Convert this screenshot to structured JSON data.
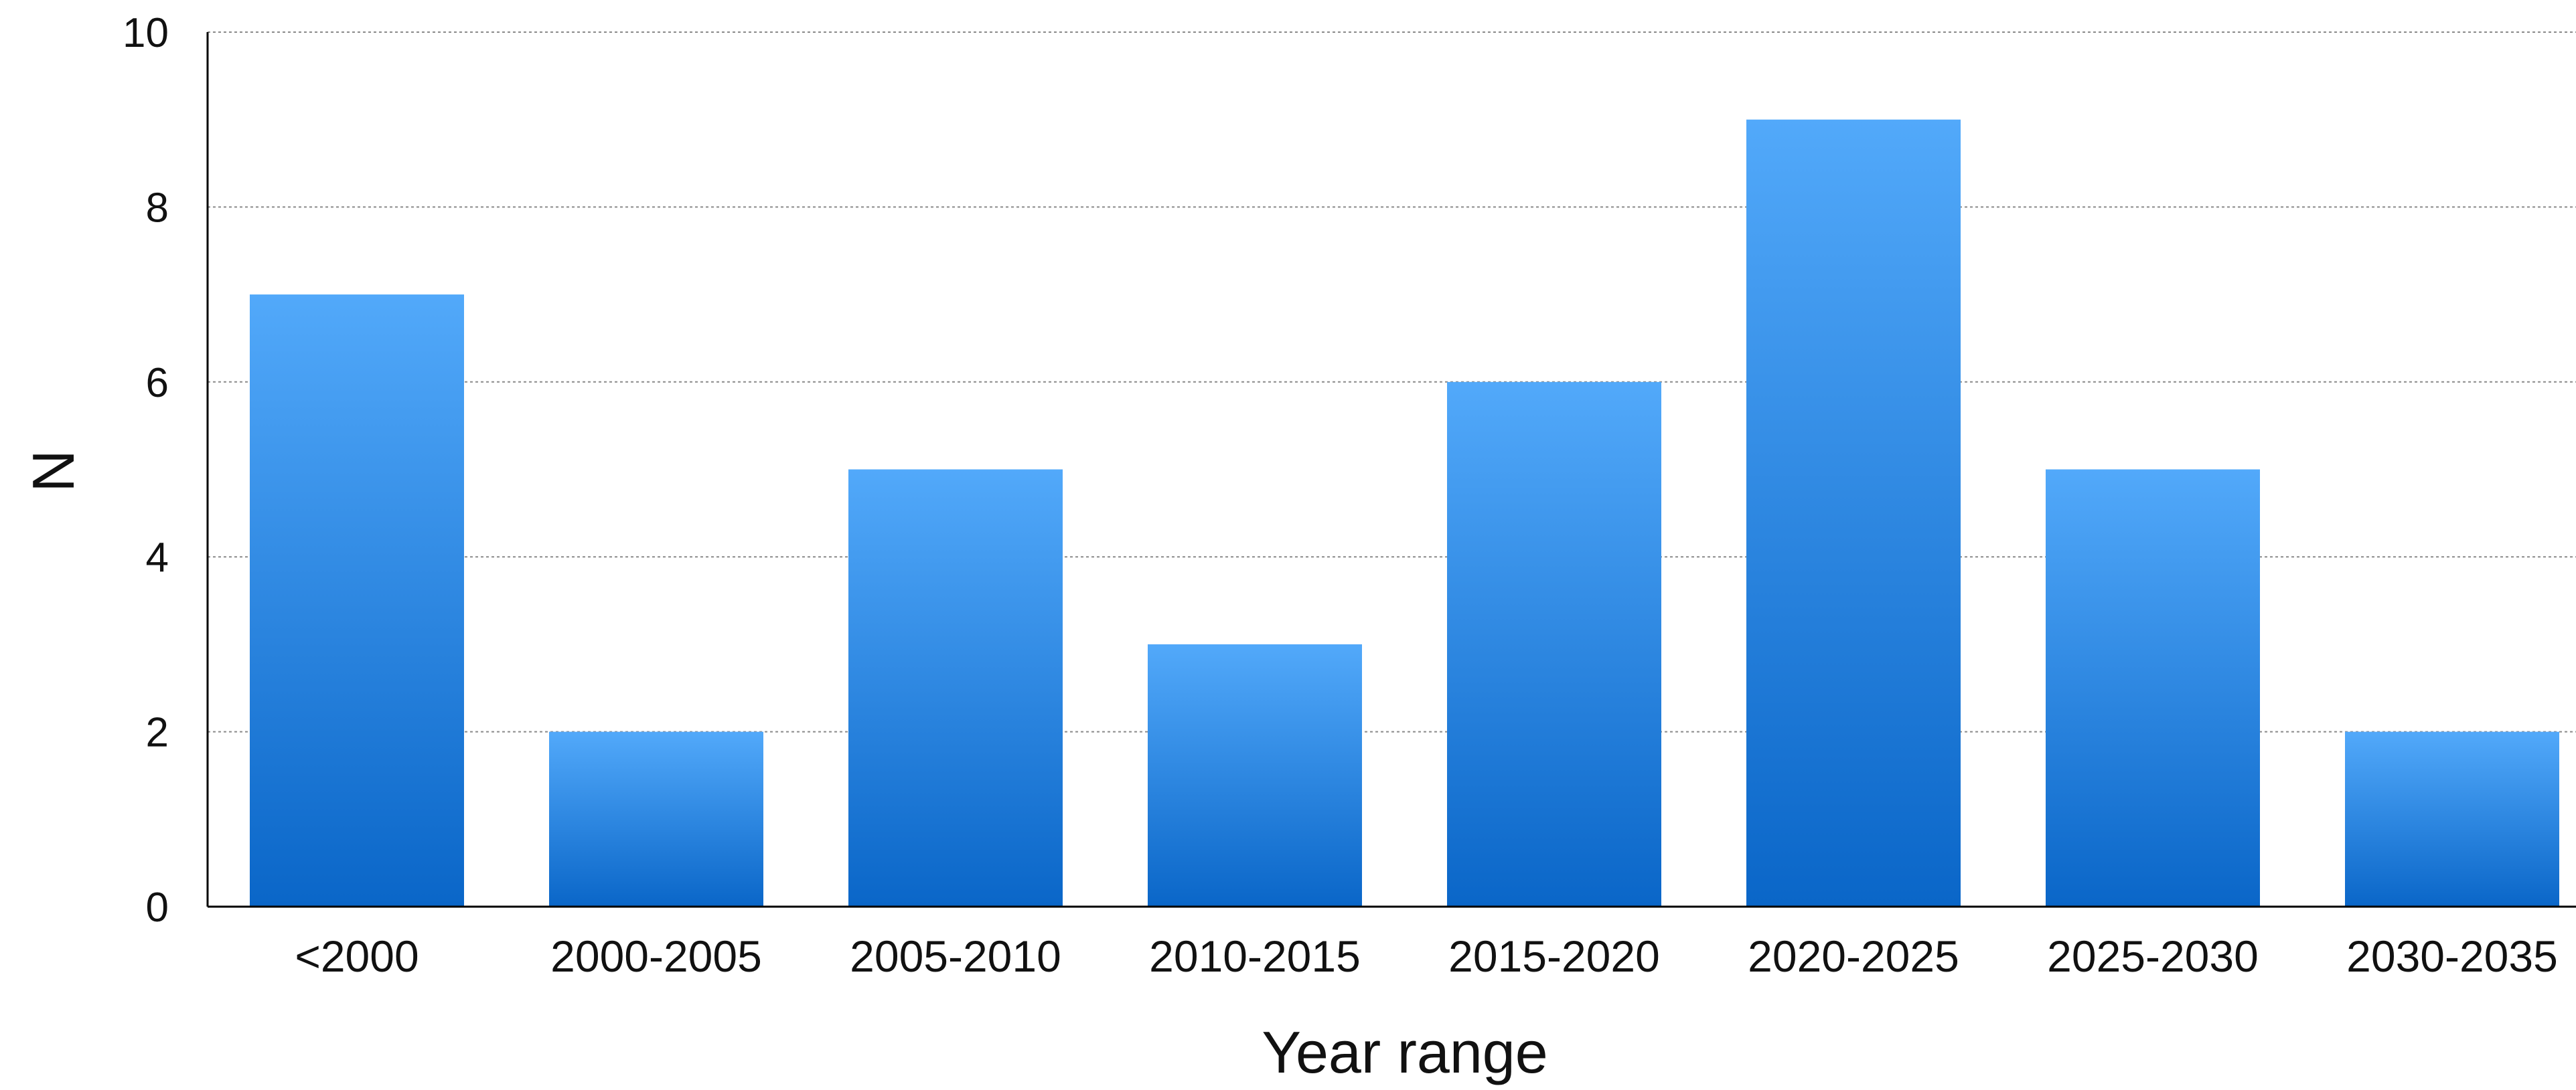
{
  "chart_data": {
    "type": "bar",
    "title": "",
    "xlabel": "Year range",
    "ylabel": "N",
    "categories": [
      "<2000",
      "2000-2005",
      "2005-2010",
      "2010-2015",
      "2015-2020",
      "2020-2025",
      "2025-2030",
      "2030-2035"
    ],
    "values": [
      7,
      2,
      5,
      3,
      6,
      9,
      5,
      2
    ],
    "ylim": [
      0,
      10
    ],
    "yticks": [
      0,
      2,
      4,
      6,
      8,
      10
    ],
    "grid": true,
    "grid_style": "dotted-horizontal",
    "colors": {
      "bar_top": "#52a9fa",
      "bar_bottom": "#0a66c8",
      "grid": "#8a8a8a",
      "axis": "#000000",
      "text": "#111111"
    }
  }
}
